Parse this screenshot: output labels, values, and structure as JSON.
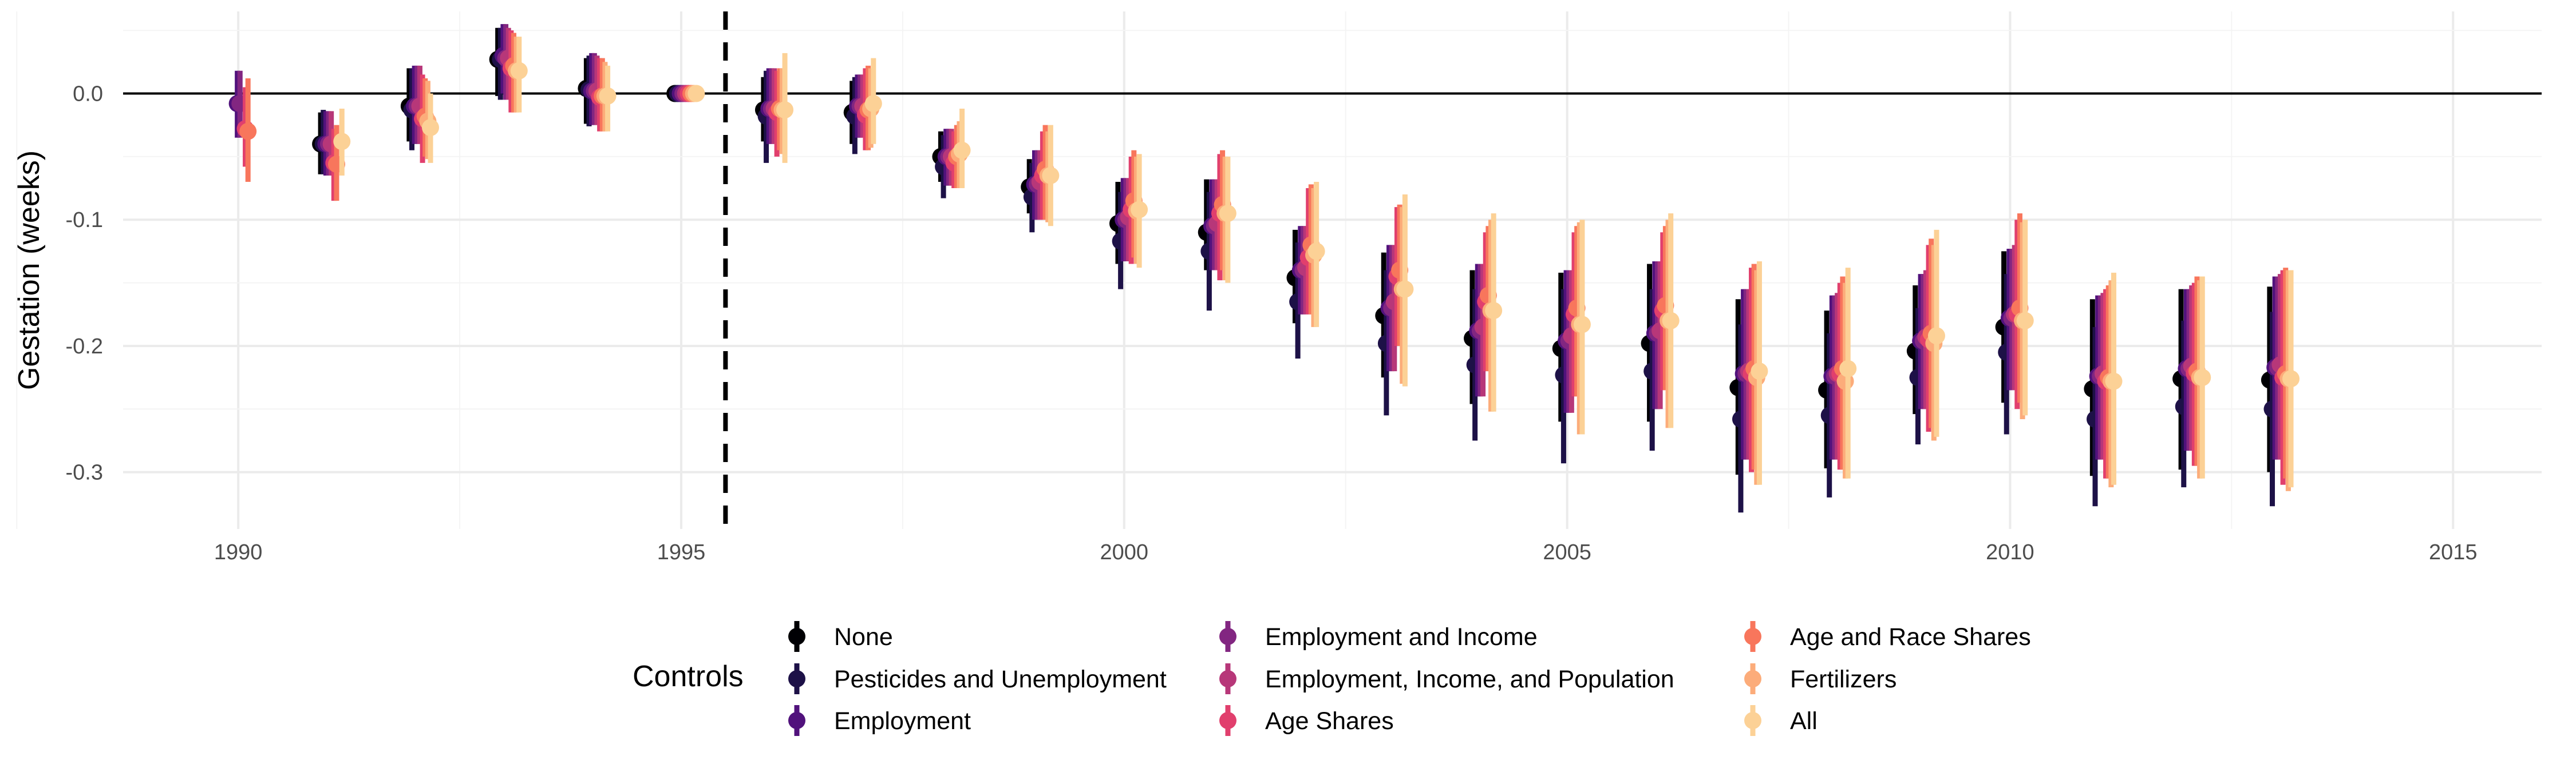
{
  "chart_data": {
    "type": "errorbar",
    "ylabel": "Gestation (weeks)",
    "xlabel": "",
    "xlim": [
      1988.7,
      1516.0
    ],
    "ylim": [
      -0.345,
      0.065
    ],
    "x_ticks": [
      1990,
      1995,
      2000,
      2005,
      2010,
      2015
    ],
    "x_tick_labels": [
      "1990",
      "1995",
      "2000",
      "2005",
      "2010",
      "2015"
    ],
    "y_ticks": [
      0.0,
      -0.1,
      -0.2,
      -0.3
    ],
    "y_tick_labels": [
      "0.0",
      "-0.1",
      "-0.2",
      "-0.3"
    ],
    "grid": true,
    "zero_line": 0.0,
    "vline_dashed": 1995.5,
    "legend": {
      "title": "Controls",
      "position": "bottom"
    },
    "categories": [
      1990,
      1991,
      1992,
      1993,
      1994,
      1995,
      1996,
      1997,
      1998,
      1999,
      2000,
      2001,
      2002,
      2003,
      2004,
      2005,
      2006,
      2007,
      2008,
      2009,
      2010,
      2011,
      2012,
      2013
    ],
    "series": [
      {
        "name": "None",
        "color": "#000004",
        "year_offset": -0.07,
        "values": [
          null,
          -0.04,
          -0.01,
          0.027,
          0.004,
          0.0,
          -0.013,
          -0.015,
          -0.05,
          -0.074,
          -0.103,
          -0.11,
          -0.146,
          -0.176,
          -0.194,
          -0.202,
          -0.198,
          -0.233,
          -0.235,
          -0.204,
          -0.185,
          -0.234,
          -0.226,
          -0.227
        ],
        "lower": [
          null,
          -0.064,
          -0.038,
          -0.002,
          -0.024,
          0.0,
          -0.038,
          -0.04,
          -0.07,
          -0.095,
          -0.135,
          -0.14,
          -0.182,
          -0.225,
          -0.246,
          -0.26,
          -0.26,
          -0.302,
          -0.297,
          -0.254,
          -0.245,
          -0.303,
          -0.298,
          -0.3
        ],
        "upper": [
          null,
          -0.015,
          0.02,
          0.052,
          0.028,
          0.0,
          0.013,
          0.01,
          -0.03,
          -0.052,
          -0.07,
          -0.068,
          -0.108,
          -0.126,
          -0.14,
          -0.142,
          -0.135,
          -0.163,
          -0.172,
          -0.152,
          -0.125,
          -0.163,
          -0.155,
          -0.153
        ]
      },
      {
        "name": "Pesticides and Unemployment",
        "color": "#1d1147",
        "year_offset": -0.04,
        "values": [
          null,
          -0.04,
          -0.013,
          0.027,
          0.003,
          0.0,
          -0.018,
          -0.018,
          -0.058,
          -0.082,
          -0.117,
          -0.125,
          -0.165,
          -0.198,
          -0.215,
          -0.223,
          -0.22,
          -0.258,
          -0.255,
          -0.225,
          -0.205,
          -0.258,
          -0.248,
          -0.25
        ],
        "lower": [
          null,
          -0.064,
          -0.045,
          -0.005,
          -0.026,
          0.0,
          -0.055,
          -0.048,
          -0.083,
          -0.11,
          -0.155,
          -0.172,
          -0.21,
          -0.255,
          -0.275,
          -0.293,
          -0.283,
          -0.332,
          -0.32,
          -0.278,
          -0.27,
          -0.327,
          -0.312,
          -0.327
        ],
        "upper": [
          null,
          -0.013,
          0.02,
          0.052,
          0.03,
          0.0,
          0.018,
          0.013,
          -0.033,
          -0.055,
          -0.078,
          -0.078,
          -0.118,
          -0.14,
          -0.155,
          -0.155,
          -0.155,
          -0.183,
          -0.19,
          -0.17,
          -0.143,
          -0.185,
          -0.18,
          -0.173
        ]
      },
      {
        "name": "Employment",
        "color": "#51127c",
        "year_offset": -0.01,
        "values": [
          -0.008,
          -0.04,
          -0.01,
          0.03,
          0.002,
          0.0,
          -0.012,
          -0.01,
          -0.05,
          -0.072,
          -0.1,
          -0.105,
          -0.14,
          -0.17,
          -0.188,
          -0.196,
          -0.19,
          -0.222,
          -0.224,
          -0.196,
          -0.178,
          -0.224,
          -0.218,
          -0.217
        ],
        "lower": [
          -0.035,
          -0.065,
          -0.04,
          0.0,
          -0.025,
          0.0,
          -0.04,
          -0.035,
          -0.073,
          -0.1,
          -0.133,
          -0.14,
          -0.175,
          -0.22,
          -0.24,
          -0.253,
          -0.25,
          -0.29,
          -0.29,
          -0.25,
          -0.235,
          -0.29,
          -0.283,
          -0.29
        ],
        "upper": [
          0.018,
          -0.014,
          0.022,
          0.055,
          0.032,
          0.0,
          0.02,
          0.015,
          -0.028,
          -0.045,
          -0.067,
          -0.068,
          -0.105,
          -0.12,
          -0.135,
          -0.14,
          -0.133,
          -0.155,
          -0.16,
          -0.143,
          -0.123,
          -0.16,
          -0.155,
          -0.145
        ]
      },
      {
        "name": "Employment and Income",
        "color": "#822681",
        "year_offset": 0.02,
        "values": [
          -0.008,
          -0.04,
          -0.01,
          0.028,
          0.002,
          0.0,
          -0.012,
          -0.01,
          -0.05,
          -0.072,
          -0.1,
          -0.105,
          -0.14,
          -0.17,
          -0.188,
          -0.196,
          -0.19,
          -0.222,
          -0.224,
          -0.196,
          -0.178,
          -0.224,
          -0.218,
          -0.217
        ],
        "lower": [
          -0.035,
          -0.065,
          -0.04,
          -0.005,
          -0.025,
          0.0,
          -0.04,
          -0.035,
          -0.073,
          -0.1,
          -0.133,
          -0.14,
          -0.175,
          -0.22,
          -0.24,
          -0.253,
          -0.25,
          -0.29,
          -0.29,
          -0.25,
          -0.235,
          -0.29,
          -0.283,
          -0.29
        ],
        "upper": [
          0.018,
          -0.014,
          0.022,
          0.055,
          0.032,
          0.0,
          0.02,
          0.015,
          -0.028,
          -0.045,
          -0.067,
          -0.068,
          -0.105,
          -0.12,
          -0.135,
          -0.14,
          -0.133,
          -0.155,
          -0.16,
          -0.143,
          -0.123,
          -0.16,
          -0.155,
          -0.145
        ]
      },
      {
        "name": "Employment, Income, and Population",
        "color": "#b73779",
        "year_offset": 0.05,
        "values": [
          null,
          -0.04,
          -0.01,
          0.028,
          0.002,
          0.0,
          -0.012,
          -0.01,
          -0.05,
          -0.07,
          -0.098,
          -0.103,
          -0.138,
          -0.165,
          -0.185,
          -0.192,
          -0.188,
          -0.22,
          -0.222,
          -0.193,
          -0.175,
          -0.222,
          -0.216,
          -0.215
        ],
        "lower": [
          null,
          -0.065,
          -0.04,
          -0.005,
          -0.025,
          0.0,
          -0.04,
          -0.035,
          -0.073,
          -0.1,
          -0.133,
          -0.14,
          -0.175,
          -0.22,
          -0.24,
          -0.253,
          -0.25,
          -0.29,
          -0.29,
          -0.25,
          -0.235,
          -0.29,
          -0.283,
          -0.29
        ],
        "upper": [
          null,
          -0.014,
          0.022,
          0.052,
          0.03,
          0.0,
          0.02,
          0.015,
          -0.028,
          -0.045,
          -0.067,
          -0.068,
          -0.105,
          -0.12,
          -0.135,
          -0.14,
          -0.133,
          -0.155,
          -0.158,
          -0.14,
          -0.12,
          -0.158,
          -0.152,
          -0.143
        ]
      },
      {
        "name": "Age Shares",
        "color": "#e13f6d",
        "year_offset": 0.08,
        "values": [
          -0.028,
          -0.055,
          -0.02,
          0.02,
          -0.003,
          0.0,
          -0.015,
          -0.017,
          -0.055,
          -0.065,
          -0.092,
          -0.095,
          -0.13,
          -0.145,
          -0.165,
          -0.175,
          -0.172,
          -0.222,
          -0.222,
          -0.195,
          -0.175,
          -0.228,
          -0.222,
          -0.225
        ],
        "lower": [
          -0.058,
          -0.085,
          -0.055,
          -0.015,
          -0.03,
          0.0,
          -0.05,
          -0.045,
          -0.075,
          -0.1,
          -0.135,
          -0.148,
          -0.175,
          -0.2,
          -0.22,
          -0.24,
          -0.235,
          -0.3,
          -0.298,
          -0.268,
          -0.25,
          -0.305,
          -0.295,
          -0.31
        ],
        "upper": [
          0.005,
          -0.028,
          0.015,
          0.05,
          0.028,
          0.0,
          0.018,
          0.02,
          -0.03,
          -0.03,
          -0.05,
          -0.048,
          -0.075,
          -0.09,
          -0.11,
          -0.11,
          -0.11,
          -0.138,
          -0.15,
          -0.12,
          -0.1,
          -0.155,
          -0.15,
          -0.14
        ]
      },
      {
        "name": "Age and Race Shares",
        "color": "#f8765c",
        "year_offset": 0.11,
        "values": [
          -0.03,
          -0.056,
          -0.018,
          0.022,
          -0.002,
          0.0,
          -0.012,
          -0.013,
          -0.05,
          -0.06,
          -0.085,
          -0.088,
          -0.12,
          -0.14,
          -0.16,
          -0.17,
          -0.168,
          -0.218,
          -0.218,
          -0.19,
          -0.17,
          -0.225,
          -0.22,
          -0.222
        ],
        "lower": [
          -0.07,
          -0.085,
          -0.05,
          -0.015,
          -0.03,
          0.0,
          -0.045,
          -0.045,
          -0.075,
          -0.1,
          -0.13,
          -0.14,
          -0.175,
          -0.2,
          -0.22,
          -0.24,
          -0.235,
          -0.298,
          -0.298,
          -0.265,
          -0.245,
          -0.305,
          -0.295,
          -0.305
        ],
        "upper": [
          0.012,
          -0.025,
          0.012,
          0.048,
          0.028,
          0.0,
          0.02,
          0.022,
          -0.025,
          -0.025,
          -0.045,
          -0.045,
          -0.072,
          -0.088,
          -0.105,
          -0.105,
          -0.105,
          -0.135,
          -0.145,
          -0.115,
          -0.095,
          -0.152,
          -0.145,
          -0.138
        ]
      },
      {
        "name": "Fertilizers",
        "color": "#fcac7a",
        "year_offset": 0.14,
        "values": [
          null,
          null,
          -0.022,
          0.018,
          -0.002,
          0.0,
          -0.013,
          -0.012,
          -0.048,
          -0.065,
          -0.093,
          -0.095,
          -0.128,
          -0.155,
          -0.172,
          -0.183,
          -0.18,
          -0.225,
          -0.228,
          -0.198,
          -0.18,
          -0.228,
          -0.225,
          -0.226
        ],
        "lower": [
          null,
          null,
          -0.052,
          -0.015,
          -0.03,
          0.0,
          -0.048,
          -0.043,
          -0.075,
          -0.102,
          -0.135,
          -0.148,
          -0.185,
          -0.23,
          -0.252,
          -0.27,
          -0.265,
          -0.31,
          -0.305,
          -0.275,
          -0.258,
          -0.312,
          -0.305,
          -0.315
        ],
        "upper": [
          null,
          null,
          0.01,
          0.045,
          0.025,
          0.0,
          0.02,
          0.02,
          -0.022,
          -0.03,
          -0.05,
          -0.05,
          -0.075,
          -0.09,
          -0.1,
          -0.102,
          -0.1,
          -0.14,
          -0.15,
          -0.12,
          -0.102,
          -0.148,
          -0.148,
          -0.14
        ]
      },
      {
        "name": "All",
        "color": "#fcd196",
        "year_offset": 0.17,
        "values": [
          null,
          -0.038,
          -0.027,
          0.018,
          -0.002,
          0.0,
          -0.013,
          -0.008,
          -0.045,
          -0.065,
          -0.092,
          -0.095,
          -0.125,
          -0.155,
          -0.172,
          -0.183,
          -0.18,
          -0.22,
          -0.218,
          -0.192,
          -0.18,
          -0.228,
          -0.225,
          -0.226
        ],
        "lower": [
          null,
          -0.065,
          -0.055,
          -0.015,
          -0.03,
          0.0,
          -0.055,
          -0.04,
          -0.075,
          -0.105,
          -0.138,
          -0.15,
          -0.185,
          -0.232,
          -0.252,
          -0.27,
          -0.265,
          -0.31,
          -0.305,
          -0.272,
          -0.255,
          -0.31,
          -0.305,
          -0.312
        ],
        "upper": [
          null,
          -0.012,
          0.0,
          0.045,
          0.022,
          0.0,
          0.032,
          0.028,
          -0.012,
          -0.025,
          -0.048,
          -0.05,
          -0.07,
          -0.08,
          -0.095,
          -0.1,
          -0.095,
          -0.133,
          -0.138,
          -0.108,
          -0.1,
          -0.142,
          -0.145,
          -0.14
        ]
      }
    ]
  }
}
